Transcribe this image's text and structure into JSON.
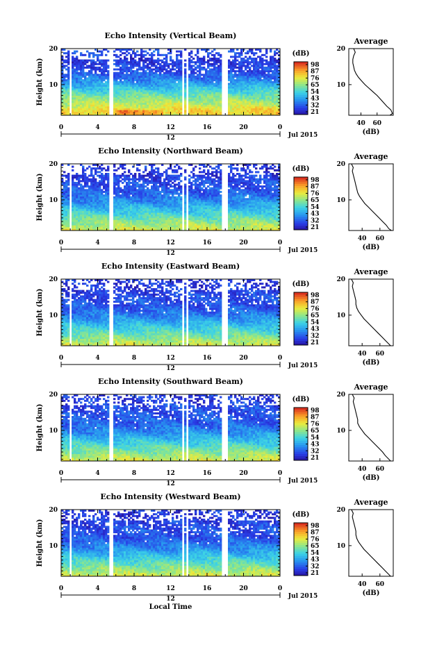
{
  "chart_data": [
    {
      "type": "heatmap",
      "title": "Echo Intensity (Vertical Beam)",
      "ylabel": "Height (km)",
      "y_ticks": [
        "20",
        "10"
      ],
      "x_ticks": [
        "0",
        "4",
        "8",
        "12",
        "16",
        "20",
        "0"
      ],
      "date_marker": "12",
      "date_label": "Jul 2015",
      "xlim": [
        0,
        24
      ],
      "ylim": [
        1.5,
        20
      ],
      "colorbar": {
        "unit": "(dB)",
        "ticks": [
          "98",
          "87",
          "76",
          "65",
          "54",
          "43",
          "32",
          "21"
        ],
        "range": [
          21,
          98
        ]
      },
      "data_gaps_hours": [
        [
          0.9,
          1.1
        ],
        [
          5.2,
          5.6
        ],
        [
          13.2,
          13.4
        ],
        [
          13.7,
          13.9
        ],
        [
          17.7,
          18.2
        ]
      ],
      "profile": {
        "title": "Average",
        "xlabel": "(dB)",
        "x_ticks": [
          "40",
          "60"
        ],
        "y_ticks": [
          "20",
          "10"
        ],
        "xlim": [
          25,
          80
        ],
        "points": [
          [
            1.5,
            76
          ],
          [
            2,
            79
          ],
          [
            3,
            77
          ],
          [
            4,
            72
          ],
          [
            5,
            68
          ],
          [
            6,
            64
          ],
          [
            7,
            60
          ],
          [
            8,
            55
          ],
          [
            9,
            50
          ],
          [
            10,
            45
          ],
          [
            11,
            41
          ],
          [
            12,
            37
          ],
          [
            13,
            34
          ],
          [
            14,
            32
          ],
          [
            15,
            31
          ],
          [
            16,
            30
          ],
          [
            17,
            30
          ],
          [
            18,
            31
          ],
          [
            19,
            33
          ],
          [
            20,
            31
          ]
        ]
      }
    },
    {
      "type": "heatmap",
      "title": "Echo Intensity (Northward Beam)",
      "ylabel": "Height (km)",
      "y_ticks": [
        "20",
        "10"
      ],
      "x_ticks": [
        "0",
        "4",
        "8",
        "12",
        "16",
        "20",
        "0"
      ],
      "date_marker": "12",
      "date_label": "Jul 2015",
      "xlim": [
        0,
        24
      ],
      "ylim": [
        1.5,
        20
      ],
      "colorbar": {
        "unit": "(dB)",
        "ticks": [
          "98",
          "87",
          "76",
          "65",
          "54",
          "43",
          "32",
          "21"
        ],
        "range": [
          21,
          98
        ]
      },
      "data_gaps_hours": [
        [
          0.9,
          1.1
        ],
        [
          5.2,
          5.6
        ],
        [
          13.2,
          13.4
        ],
        [
          13.7,
          13.9
        ],
        [
          17.7,
          18.2
        ]
      ],
      "profile": {
        "title": "Average",
        "xlabel": "(dB)",
        "x_ticks": [
          "40",
          "60"
        ],
        "y_ticks": [
          "20",
          "10"
        ],
        "xlim": [
          25,
          75
        ],
        "points": [
          [
            1.5,
            73
          ],
          [
            2,
            70
          ],
          [
            3,
            67
          ],
          [
            4,
            63
          ],
          [
            5,
            59
          ],
          [
            6,
            55
          ],
          [
            7,
            51
          ],
          [
            8,
            47
          ],
          [
            9,
            43
          ],
          [
            10,
            40
          ],
          [
            11,
            37
          ],
          [
            12,
            35
          ],
          [
            13,
            34
          ],
          [
            14,
            33
          ],
          [
            15,
            32
          ],
          [
            16,
            31
          ],
          [
            17,
            30
          ],
          [
            18,
            29
          ],
          [
            19,
            30
          ],
          [
            20,
            28
          ]
        ]
      }
    },
    {
      "type": "heatmap",
      "title": "Echo Intensity (Eastward Beam)",
      "ylabel": "Height (km)",
      "y_ticks": [
        "20",
        "10"
      ],
      "x_ticks": [
        "0",
        "4",
        "8",
        "12",
        "16",
        "20",
        "0"
      ],
      "date_marker": "12",
      "date_label": "Jul 2015",
      "xlim": [
        0,
        24
      ],
      "ylim": [
        1.5,
        20
      ],
      "colorbar": {
        "unit": "(dB)",
        "ticks": [
          "98",
          "87",
          "76",
          "65",
          "54",
          "43",
          "32",
          "21"
        ],
        "range": [
          21,
          98
        ]
      },
      "data_gaps_hours": [
        [
          0.9,
          1.1
        ],
        [
          5.2,
          5.6
        ],
        [
          13.2,
          13.4
        ],
        [
          13.7,
          13.9
        ],
        [
          17.7,
          18.2
        ]
      ],
      "profile": {
        "title": "Average",
        "xlabel": "(dB)",
        "x_ticks": [
          "40",
          "60"
        ],
        "y_ticks": [
          "20",
          "10"
        ],
        "xlim": [
          25,
          75
        ],
        "points": [
          [
            1.5,
            72
          ],
          [
            2,
            70
          ],
          [
            3,
            66
          ],
          [
            4,
            62
          ],
          [
            5,
            58
          ],
          [
            6,
            54
          ],
          [
            7,
            50
          ],
          [
            8,
            46
          ],
          [
            9,
            42
          ],
          [
            10,
            39
          ],
          [
            11,
            36
          ],
          [
            12,
            34
          ],
          [
            13,
            33
          ],
          [
            14,
            33
          ],
          [
            15,
            32
          ],
          [
            16,
            31
          ],
          [
            17,
            30
          ],
          [
            18,
            29
          ],
          [
            19,
            30
          ],
          [
            20,
            28
          ]
        ]
      }
    },
    {
      "type": "heatmap",
      "title": "Echo Intensity (Southward Beam)",
      "ylabel": "Height (km)",
      "y_ticks": [
        "20",
        "10"
      ],
      "x_ticks": [
        "0",
        "4",
        "8",
        "12",
        "16",
        "20",
        "0"
      ],
      "date_marker": "12",
      "date_label": "Jul 2015",
      "xlim": [
        0,
        24
      ],
      "ylim": [
        1.5,
        20
      ],
      "colorbar": {
        "unit": "(dB)",
        "ticks": [
          "98",
          "87",
          "76",
          "65",
          "54",
          "43",
          "32",
          "21"
        ],
        "range": [
          21,
          98
        ]
      },
      "data_gaps_hours": [
        [
          0.9,
          1.1
        ],
        [
          5.2,
          5.6
        ],
        [
          13.2,
          13.4
        ],
        [
          13.7,
          13.9
        ],
        [
          17.7,
          18.2
        ]
      ],
      "profile": {
        "title": "Average",
        "xlabel": "(dB)",
        "x_ticks": [
          "40",
          "60"
        ],
        "y_ticks": [
          "20",
          "10"
        ],
        "xlim": [
          25,
          75
        ],
        "points": [
          [
            1.5,
            72
          ],
          [
            2,
            70
          ],
          [
            3,
            66
          ],
          [
            4,
            63
          ],
          [
            5,
            59
          ],
          [
            6,
            55
          ],
          [
            7,
            51
          ],
          [
            8,
            47
          ],
          [
            9,
            43
          ],
          [
            10,
            40
          ],
          [
            11,
            37
          ],
          [
            12,
            35
          ],
          [
            13,
            35
          ],
          [
            14,
            34
          ],
          [
            15,
            33
          ],
          [
            16,
            32
          ],
          [
            17,
            31
          ],
          [
            18,
            30
          ],
          [
            19,
            31
          ],
          [
            20,
            29
          ]
        ]
      }
    },
    {
      "type": "heatmap",
      "title": "Echo Intensity (Westward Beam)",
      "ylabel": "Height (km)",
      "xlabel": "Local Time",
      "y_ticks": [
        "20",
        "10"
      ],
      "x_ticks": [
        "0",
        "4",
        "8",
        "12",
        "16",
        "20",
        "0"
      ],
      "date_marker": "12",
      "date_label": "Jul 2015",
      "xlim": [
        0,
        24
      ],
      "ylim": [
        1.5,
        20
      ],
      "colorbar": {
        "unit": "(dB)",
        "ticks": [
          "98",
          "87",
          "76",
          "65",
          "54",
          "43",
          "32",
          "21"
        ],
        "range": [
          21,
          98
        ]
      },
      "data_gaps_hours": [
        [
          0.9,
          1.1
        ],
        [
          5.2,
          5.6
        ],
        [
          13.2,
          13.4
        ],
        [
          13.7,
          13.9
        ],
        [
          17.7,
          18.2
        ]
      ],
      "profile": {
        "title": "Average",
        "xlabel": "(dB)",
        "x_ticks": [
          "40",
          "60"
        ],
        "y_ticks": [
          "20",
          "10"
        ],
        "xlim": [
          25,
          75
        ],
        "points": [
          [
            1.5,
            72
          ],
          [
            2,
            70
          ],
          [
            3,
            66
          ],
          [
            4,
            62
          ],
          [
            5,
            58
          ],
          [
            6,
            54
          ],
          [
            7,
            50
          ],
          [
            8,
            46
          ],
          [
            9,
            42
          ],
          [
            10,
            39
          ],
          [
            11,
            36
          ],
          [
            12,
            34
          ],
          [
            13,
            33
          ],
          [
            14,
            33
          ],
          [
            15,
            32
          ],
          [
            16,
            31
          ],
          [
            17,
            30
          ],
          [
            18,
            29
          ],
          [
            19,
            30
          ],
          [
            20,
            28
          ]
        ]
      }
    }
  ]
}
